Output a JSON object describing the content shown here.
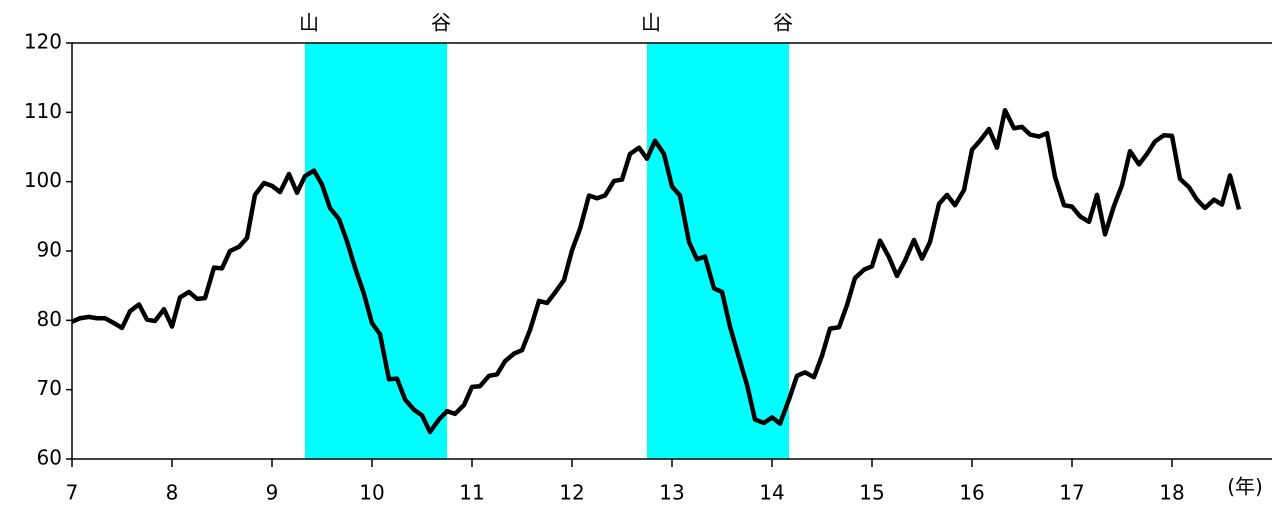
{
  "chart_data": {
    "type": "line",
    "x_label": "(年)",
    "xlim": [
      7,
      19
    ],
    "xticks": [
      7,
      8,
      9,
      10,
      11,
      12,
      13,
      14,
      15,
      16,
      17,
      18
    ],
    "ylim": [
      60,
      120
    ],
    "yticks": [
      60,
      70,
      80,
      90,
      100,
      110,
      120
    ],
    "grid": false,
    "band_color": "#00ffff",
    "bands": [
      {
        "start": 9.33,
        "end": 10.75,
        "start_label": "山",
        "end_label": "谷"
      },
      {
        "start": 12.75,
        "end": 14.17,
        "start_label": "山",
        "end_label": "谷"
      }
    ],
    "x": [
      7.0,
      7.08,
      7.17,
      7.25,
      7.33,
      7.42,
      7.5,
      7.58,
      7.67,
      7.75,
      7.83,
      7.92,
      8.0,
      8.08,
      8.17,
      8.25,
      8.33,
      8.42,
      8.5,
      8.58,
      8.67,
      8.75,
      8.83,
      8.92,
      9.0,
      9.08,
      9.17,
      9.25,
      9.33,
      9.42,
      9.5,
      9.58,
      9.67,
      9.75,
      9.83,
      9.92,
      10.0,
      10.08,
      10.17,
      10.25,
      10.33,
      10.42,
      10.5,
      10.58,
      10.67,
      10.75,
      10.83,
      10.92,
      11.0,
      11.08,
      11.17,
      11.25,
      11.33,
      11.42,
      11.5,
      11.58,
      11.67,
      11.75,
      11.83,
      11.92,
      12.0,
      12.08,
      12.17,
      12.25,
      12.33,
      12.42,
      12.5,
      12.58,
      12.67,
      12.75,
      12.83,
      12.92,
      13.0,
      13.08,
      13.17,
      13.25,
      13.33,
      13.42,
      13.5,
      13.58,
      13.67,
      13.75,
      13.83,
      13.92,
      14.0,
      14.08,
      14.17,
      14.25,
      14.33,
      14.42,
      14.5,
      14.58,
      14.67,
      14.75,
      14.83,
      14.92,
      15.0,
      15.08,
      15.17,
      15.25,
      15.33,
      15.42,
      15.5,
      15.58,
      15.67,
      15.75,
      15.83,
      15.92,
      16.0,
      16.08,
      16.17,
      16.25,
      16.33,
      16.42,
      16.5,
      16.58,
      16.67,
      16.75,
      16.83,
      16.92,
      17.0,
      17.08,
      17.17,
      17.25,
      17.33,
      17.42,
      17.5,
      17.58,
      17.67,
      17.75,
      17.83,
      17.92,
      18.0,
      18.08,
      18.17,
      18.25,
      18.33,
      18.42,
      18.5,
      18.58,
      18.67
    ],
    "series": [
      {
        "color": "#000000",
        "values": [
          79.8,
          80.3,
          80.5,
          80.3,
          80.3,
          79.6,
          78.9,
          81.3,
          82.3,
          80.1,
          79.9,
          81.6,
          79.1,
          83.3,
          84.1,
          83.1,
          83.2,
          87.6,
          87.5,
          90.0,
          90.6,
          91.9,
          98.1,
          99.8,
          99.4,
          98.5,
          101.1,
          98.4,
          100.8,
          101.6,
          99.6,
          96.2,
          94.6,
          91.4,
          87.6,
          83.8,
          79.6,
          78.0,
          71.5,
          71.6,
          68.6,
          67.1,
          66.3,
          63.9,
          65.7,
          66.9,
          66.5,
          67.8,
          70.4,
          70.5,
          72.0,
          72.2,
          74.1,
          75.2,
          75.7,
          78.6,
          82.8,
          82.5,
          84.0,
          85.8,
          90.1,
          93.2,
          98.0,
          97.6,
          98.0,
          100.1,
          100.3,
          104.0,
          104.9,
          103.3,
          105.9,
          104.0,
          99.3,
          98.0,
          91.3,
          88.8,
          89.2,
          84.6,
          84.1,
          79.1,
          74.6,
          70.7,
          65.7,
          65.2,
          66.0,
          65.1,
          68.6,
          72.0,
          72.5,
          71.8,
          74.9,
          78.8,
          79.0,
          82.2,
          86.1,
          87.3,
          87.8,
          91.5,
          89.1,
          86.4,
          88.6,
          91.6,
          88.9,
          91.3,
          96.8,
          98.1,
          96.6,
          98.8,
          104.6,
          105.9,
          107.6,
          104.9,
          110.3,
          107.7,
          107.9,
          106.8,
          106.5,
          107.0,
          100.7,
          96.6,
          96.4,
          95.0,
          94.2,
          98.1,
          92.4,
          96.5,
          99.5,
          104.4,
          102.5,
          104.0,
          105.8,
          106.7,
          106.6,
          100.4,
          99.2,
          97.4,
          96.2,
          97.4,
          96.7,
          100.9,
          96.0
        ]
      }
    ]
  }
}
